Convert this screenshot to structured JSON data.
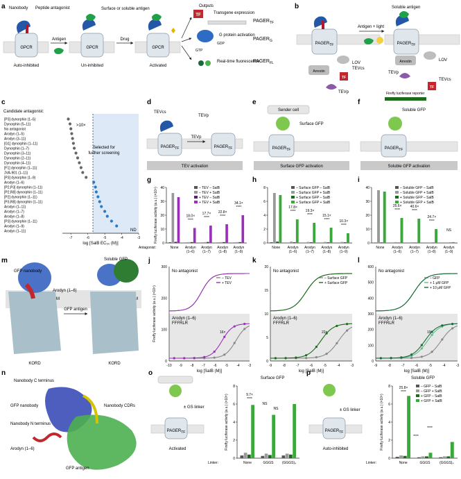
{
  "panels": {
    "a": {
      "letter": "a",
      "labels": {
        "nanobody": "Nanobody",
        "peptide_antagonist": "Peptide antagonist",
        "gpcr": "GPCR",
        "auto_inhibited": "Auto-inhibited",
        "antigen": "Antigen",
        "surface_or_soluble_antigen": "Surface or soluble antigen",
        "un_inhibited": "Un-inhibited",
        "drug": "Drug",
        "activated": "Activated",
        "outputs": "Outputs",
        "transgene_expression": "Transgene expression",
        "g_protein_activation": "G protein activation",
        "real_time_fluorescence": "Real-time fluorescence",
        "tf": "TF",
        "gtp": "GTP",
        "gdp": "GDP",
        "pager_tf": "PAGER",
        "pager_tf_sub": "TF",
        "pager_g": "PAGER",
        "pager_g_sub": "G",
        "pager_fl": "PAGER",
        "pager_fl_sub": "FL"
      }
    },
    "b": {
      "letter": "b",
      "labels": {
        "pager_tf": "PAGER",
        "pager_tf_sub": "TF",
        "soluble_antigen": "Soluble antigen",
        "antigen_light": "Antigen + light",
        "lov": "LOV",
        "tevcs": "TEVcs",
        "arrestin": "Arrestin",
        "tevp": "TEVp",
        "tf": "TF",
        "reporter": "Firefly luciferase reporter"
      }
    },
    "c": {
      "letter": "c",
      "candidate_title": "Candidate antagonist:",
      "fold_label": ">10×",
      "selected_label": "Selected for further screening",
      "nd": "ND",
      "xlabel": "log [SalB EC₅₀ (M)]",
      "xticks": [
        "-7",
        "-6",
        "-5",
        "-4",
        "-3"
      ]
    },
    "d": {
      "letter": "d",
      "tevcs": "TEVcs",
      "tevp": "TEVp",
      "pager_left": "PAGER",
      "pager_right": "PAGER",
      "sub": "TF",
      "caption": "TEV activation"
    },
    "e": {
      "letter": "e",
      "sender": "Sender cell",
      "antigen": "Surface GFP",
      "pager": "PAGER",
      "sub": "TF",
      "caption": "Surface GFP activation"
    },
    "f": {
      "letter": "f",
      "antigen": "Soluble GFP",
      "pager": "PAGER",
      "sub": "TF",
      "caption": "Soluble GFP activation"
    },
    "g": {
      "letter": "g"
    },
    "h": {
      "letter": "h"
    },
    "i": {
      "letter": "i"
    },
    "m": {
      "letter": "m",
      "gfp_nanobody": "GFP nanobody",
      "soluble_gfp": "Soluble GFP",
      "arodyn": "Arodyn (1–6)",
      "gfp_antigen": "GFP antigen",
      "pm": "PM",
      "kord": "KORD"
    },
    "n": {
      "letter": "n",
      "c_term": "Nanobody C terminus",
      "gfp_nanobody": "GFP nanobody",
      "cdrs": "Nanobody CDRs",
      "n_term": "Nanobody N terminus",
      "arodyn": "Arodyn (1–6)",
      "gfp_antigen": "GFP antigen"
    },
    "o": {
      "letter": "o",
      "title": "Surface GFP",
      "linker_label": "± GS linker",
      "state": "Activated",
      "pager": "PAGER",
      "sub": "TF",
      "xlabel_prefix": "Linker:",
      "categories": [
        "None",
        "GGGS",
        "(GGGS)₄"
      ],
      "fold": "9.7×",
      "sig": "****",
      "ns1": "NS",
      "ns2": "NS"
    },
    "p": {
      "letter": "p",
      "title": "Soluble GFP",
      "linker_label": "± GS linker",
      "state": "Auto-inhibited",
      "pager": "PAGER",
      "sub": "TF",
      "xlabel_prefix": "Linker:",
      "categories": [
        "None",
        "GGGS",
        "(GGGS)₄"
      ],
      "fold": "25.8×",
      "sig1": "****",
      "sig2": "****",
      "sig3": "****"
    }
  },
  "chart_data": [
    {
      "panel": "c",
      "type": "scatter",
      "xlabel": "log [SalB EC₅₀ (M)]",
      "xlim": [
        -7.5,
        -3
      ],
      "threshold": -5.7,
      "categories": [
        "[P3] dynorphin (1–5)",
        "Dynorphin (5–11)",
        "No antagonist",
        "Arodyn (1–5)",
        "Arodyn (3–11)",
        "[G1] dynorphin (1–11)",
        "Dynorphin (1–7)",
        "Dynorphin (3–11)",
        "Dynorphin (2–11)",
        "Dynorphin (4–11)",
        "[F1] dynorphin (1–11)",
        "JVA-901 (1–11)",
        "[P3] dynorphin (1–9)",
        "Arodyn (1–6)",
        "[P2,P3] dynorphin (1–11)",
        "[P2,R8] dynorphin (1–11)",
        "[P2] dynorphin (1–11)",
        "[P3,R8] dynorphin (1–11)",
        "Arodyn (1–11)",
        "Arodyn (1–7)",
        "Arodyn (1–8)",
        "[P3] dynorphin (1–11)",
        "Arodyn (1–9)",
        "Arodyn (1–11)"
      ],
      "values": [
        -7.15,
        -7.05,
        -7.0,
        -6.95,
        -6.9,
        -6.85,
        -6.8,
        -6.7,
        -6.6,
        -6.5,
        -6.4,
        -6.3,
        -6.1,
        -5.65,
        -5.55,
        -5.5,
        -5.4,
        -5.3,
        -5.2,
        -5.0,
        -4.85,
        -4.6,
        -4.3,
        null
      ]
    },
    {
      "panel": "g",
      "type": "bar",
      "ylabel": "Firefly luciferase activity (a.u.) (×10⁴)",
      "ylim": [
        0,
        40
      ],
      "yticks": [
        "0",
        "10",
        "20",
        "30",
        "40"
      ],
      "xlabel_prefix": "Antagonist:",
      "categories": [
        "None",
        "Arodyn (1–6)",
        "Arodyn (1–7)",
        "Arodyn (1–8)",
        "Arodyn (1–9)"
      ],
      "series": [
        {
          "name": "– TEV – SalB",
          "color": "#555555",
          "values": [
            0.5,
            0.3,
            0.3,
            0.3,
            0.3
          ]
        },
        {
          "name": "– TEV + SalB",
          "color": "#999999",
          "values": [
            36,
            0.6,
            0.6,
            0.6,
            0.6
          ]
        },
        {
          "name": "+ TEV – SalB",
          "color": "#5c1f6b",
          "values": [
            0.8,
            0.6,
            0.7,
            0.6,
            0.6
          ]
        },
        {
          "name": "+ TEV + SalB",
          "color": "#9b30b8",
          "values": [
            33,
            10.8,
            12.5,
            13.5,
            20
          ]
        }
      ],
      "annotations": [
        "18.0×",
        "17.7×",
        "22.8×",
        "34.1×"
      ],
      "sig": "****"
    },
    {
      "panel": "h",
      "type": "bar",
      "ylim": [
        0,
        8
      ],
      "yticks": [
        "0",
        "2",
        "4",
        "6",
        "8"
      ],
      "xlabel_prefix": "",
      "categories": [
        "None",
        "Arodyn (1–6)",
        "Arodyn (1–7)",
        "Arodyn (1–8)",
        "Arodyn (1–9)"
      ],
      "series": [
        {
          "name": "– Surface GFP – SalB",
          "color": "#555555",
          "values": [
            0.1,
            0.05,
            0.05,
            0.05,
            0.05
          ]
        },
        {
          "name": "– Surface GFP + SalB",
          "color": "#999999",
          "values": [
            7.2,
            0.2,
            0.15,
            0.15,
            0.15
          ]
        },
        {
          "name": "+ Surface GFP – SalB",
          "color": "#1b6b1b",
          "values": [
            0.2,
            0.1,
            0.1,
            0.1,
            0.1
          ]
        },
        {
          "name": "+ Surface GFP + SalB",
          "color": "#3aa83a",
          "values": [
            6.9,
            3.4,
            2.9,
            2.2,
            1.4
          ]
        }
      ],
      "annotations": [
        "17.8×",
        "19.3×",
        "15.1×",
        "10.3×"
      ],
      "sig": "****"
    },
    {
      "panel": "i",
      "type": "bar",
      "ylim": [
        0,
        40
      ],
      "yticks": [
        "0",
        "10",
        "20",
        "30",
        "40"
      ],
      "xlabel_prefix": "",
      "categories": [
        "None",
        "Arodyn (1–6)",
        "Arodyn (1–7)",
        "Arodyn (1–8)",
        "Arodyn (1–9)"
      ],
      "series": [
        {
          "name": "– Soluble GFP – SalB",
          "color": "#555555",
          "values": [
            0.3,
            0.2,
            0.2,
            0.2,
            0.2
          ]
        },
        {
          "name": "– Soluble GFP + SalB",
          "color": "#999999",
          "values": [
            38,
            0.6,
            0.5,
            0.4,
            0.4
          ]
        },
        {
          "name": "+ Soluble GFP – SalB",
          "color": "#1b6b1b",
          "values": [
            0.4,
            0.3,
            0.3,
            0.3,
            0.3
          ]
        },
        {
          "name": "+ Soluble GFP + SalB",
          "color": "#3aa83a",
          "values": [
            37,
            18,
            17.5,
            10,
            0.6
          ]
        }
      ],
      "annotations": [
        "25.6×",
        "40.6×",
        "24.7×",
        "NS"
      ],
      "sig": "****"
    },
    {
      "panel": "j",
      "type": "line",
      "xlabel": "log [SalB (M)]",
      "ylabel": "Firefly luciferase activity (a.u.) (×10⁴)",
      "xlim": [
        -10,
        -3
      ],
      "ylim": [
        0,
        300
      ],
      "xticks": [
        "-10",
        "-9",
        "-8",
        "-7",
        "-6",
        "-5",
        "-4",
        "-3"
      ],
      "yticks": [
        "0",
        "100",
        "200",
        "300"
      ],
      "top_label": "No antagonist",
      "bottom_label": "Arodyn (1–6) FFFRLR",
      "fold": "16×",
      "series": [
        {
          "name": "– TEV",
          "color": "#888888"
        },
        {
          "name": "+ TEV",
          "color": "#9b30b8"
        }
      ]
    },
    {
      "panel": "k",
      "type": "line",
      "xlabel": "log [SalB (M)]",
      "xlim": [
        -9,
        -3
      ],
      "ylim": [
        0,
        20
      ],
      "xticks": [
        "-9",
        "-8",
        "-7",
        "-6",
        "-5",
        "-4",
        "-3"
      ],
      "yticks": [
        "0",
        "5",
        "10",
        "15",
        "20"
      ],
      "top_label": "No antagonist",
      "bottom_label": "Arodyn (1–6) FFFRLR",
      "fold": "22×",
      "series": [
        {
          "name": "– Surface GFP",
          "color": "#888888"
        },
        {
          "name": "+ Surface GFP",
          "color": "#1b6b1b"
        }
      ]
    },
    {
      "panel": "l",
      "type": "line",
      "xlabel": "log [SalB (M)]",
      "xlim": [
        -9,
        -3
      ],
      "ylim": [
        0,
        600
      ],
      "xticks": [
        "-9",
        "-8",
        "-7",
        "-6",
        "-5",
        "-4",
        "-3"
      ],
      "yticks": [
        "0",
        "100",
        "200",
        "300",
        "400",
        "500",
        "600"
      ],
      "top_label": "No antagonist",
      "bottom_label": "Arodyn (1–6) FFFRLR",
      "fold": "19×",
      "series": [
        {
          "name": "– GFP",
          "color": "#888888"
        },
        {
          "name": "+ 1 μM GFP",
          "color": "#5cc18c"
        },
        {
          "name": "+ 10 μM GFP",
          "color": "#1b6b3a"
        }
      ]
    },
    {
      "panel": "o",
      "type": "bar",
      "ylabel": "Firefly luciferase activity (a.u.) (×10⁵)",
      "ylim": [
        0,
        8
      ],
      "yticks": [
        "0",
        "2",
        "4",
        "6",
        "8"
      ],
      "categories": [
        "None",
        "GGGS",
        "(GGGS)₄"
      ],
      "series": [
        {
          "name": "– Surface GFP – SalB",
          "color": "#555555",
          "values": [
            0.3,
            0.25,
            0.3
          ]
        },
        {
          "name": "– Surface GFP + SalB",
          "color": "#999999",
          "values": [
            0.6,
            0.5,
            0.5
          ]
        },
        {
          "name": "+ Surface GFP – SalB",
          "color": "#1b6b1b",
          "values": [
            0.4,
            0.35,
            0.4
          ]
        },
        {
          "name": "+ Surface GFP + SalB",
          "color": "#3aa83a",
          "values": [
            5.9,
            4.8,
            6.0
          ]
        }
      ]
    },
    {
      "panel": "p",
      "type": "bar",
      "ylabel": "Firefly luciferase activity (a.u.) (×10⁵)",
      "ylim": [
        0,
        8
      ],
      "yticks": [
        "0",
        "2",
        "4",
        "6",
        "8"
      ],
      "categories": [
        "None",
        "GGGS",
        "(GGGS)₄"
      ],
      "series": [
        {
          "name": "– GFP – SalB",
          "color": "#555555",
          "values": [
            0.15,
            0.1,
            0.1
          ]
        },
        {
          "name": "– GFP + SalB",
          "color": "#999999",
          "values": [
            0.3,
            0.2,
            0.2
          ]
        },
        {
          "name": "+ GFP – SalB",
          "color": "#1b6b1b",
          "values": [
            0.25,
            0.2,
            0.2
          ]
        },
        {
          "name": "+ GFP + SalB",
          "color": "#3aa83a",
          "values": [
            6.9,
            0.6,
            1.8
          ]
        }
      ]
    }
  ]
}
